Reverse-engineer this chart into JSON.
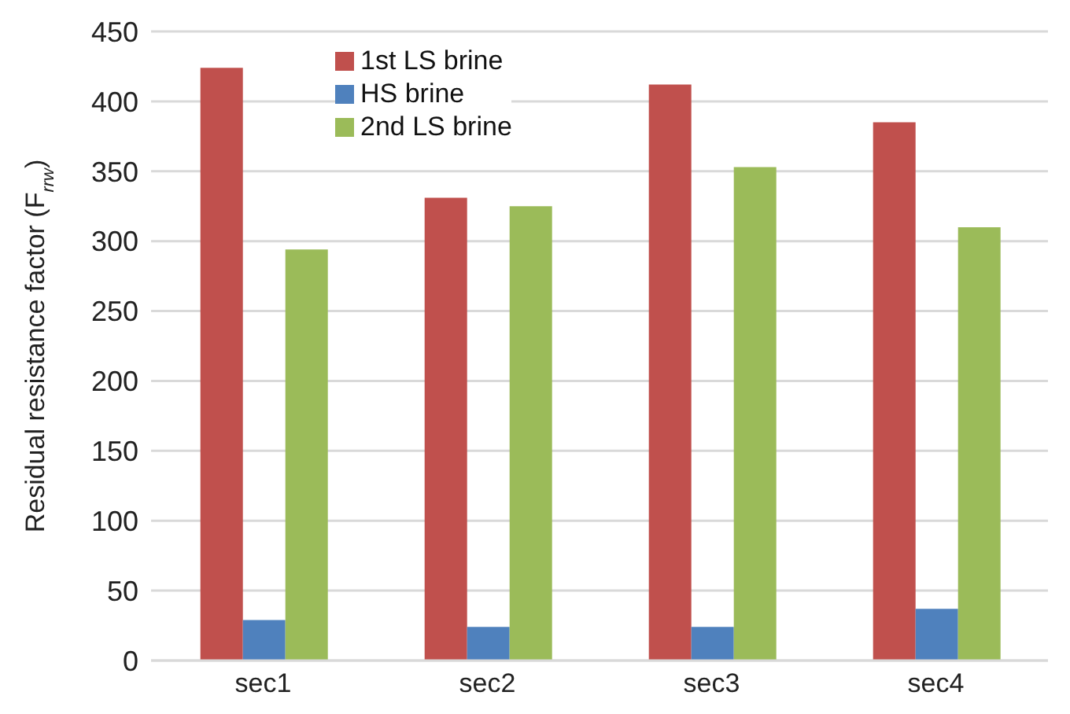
{
  "chart_data": {
    "type": "bar",
    "ylabel": "Residual resistance factor (F$_{rrw}$)",
    "categories": [
      "sec1",
      "sec2",
      "sec3",
      "sec4"
    ],
    "series": [
      {
        "name": "1st LS brine",
        "color": "#c0504d",
        "values": [
          424,
          331,
          412,
          385
        ]
      },
      {
        "name": "HS brine",
        "color": "#4f81bd",
        "values": [
          29,
          24,
          24,
          37
        ]
      },
      {
        "name": "2nd LS brine",
        "color": "#9bbb59",
        "values": [
          294,
          325,
          353,
          310
        ]
      }
    ],
    "ylim": [
      0,
      450
    ],
    "yticks": [
      0,
      50,
      100,
      150,
      200,
      250,
      300,
      350,
      400,
      450
    ],
    "grid": "y",
    "legend": "top left"
  }
}
